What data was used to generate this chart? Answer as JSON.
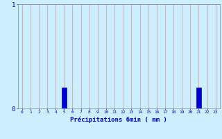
{
  "values": [
    0,
    0,
    0,
    0,
    0,
    0.2,
    0,
    0,
    0,
    0,
    0,
    0,
    0,
    0,
    0,
    0,
    0,
    0,
    0,
    0,
    0,
    0.2,
    0,
    0
  ],
  "x_labels": [
    "0",
    "1",
    "2",
    "3",
    "4",
    "5",
    "6",
    "7",
    "8",
    "9",
    "10",
    "11",
    "12",
    "13",
    "14",
    "15",
    "16",
    "17",
    "18",
    "19",
    "20",
    "21",
    "22",
    "23"
  ],
  "xlabel": "Précipitations 6min ( mm )",
  "ylim": [
    0,
    1.0
  ],
  "yticks": [
    0,
    1
  ],
  "ytick_labels": [
    "0",
    "1"
  ],
  "bar_color": "#0000cc",
  "bar_edge_color": "#0000cc",
  "background_color": "#cceeff",
  "grid_color_v": "#cc9999",
  "grid_color_h": "#aacccc",
  "xlabel_color": "#0000bb",
  "tick_color": "#0000bb",
  "axis_color": "#888888"
}
